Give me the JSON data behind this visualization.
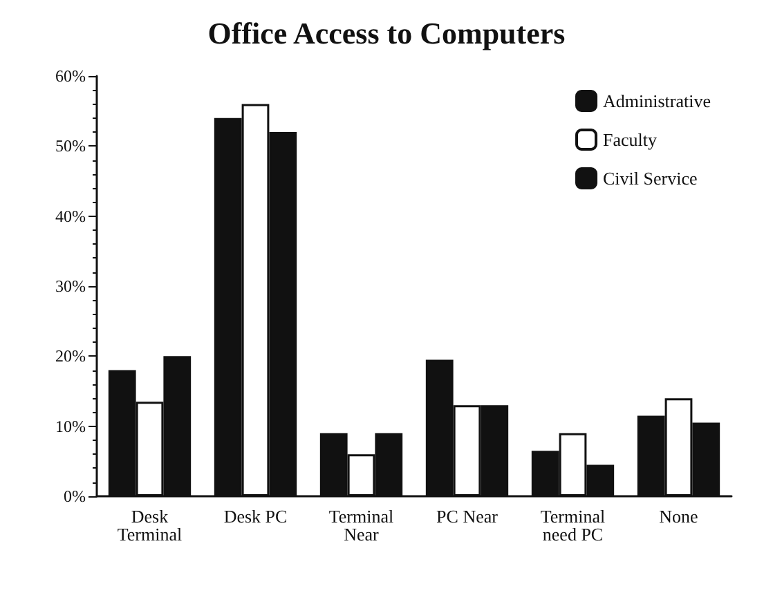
{
  "chart_data": {
    "type": "bar",
    "title": "Office Access to Computers",
    "categories": [
      "Desk\nTerminal",
      "Desk PC",
      "Terminal\nNear",
      "PC Near",
      "Terminal\nneed PC",
      "None"
    ],
    "series": [
      {
        "name": "Administrative",
        "color": "#111111",
        "values": [
          18,
          54,
          9,
          19.5,
          6.5,
          11.5
        ]
      },
      {
        "name": "Faculty",
        "color": "#ffffff",
        "values": [
          13.5,
          56,
          6,
          13,
          9,
          14
        ]
      },
      {
        "name": "Civil Service",
        "color": "#111111",
        "values": [
          20,
          52,
          9,
          13,
          4.5,
          10.5
        ]
      }
    ],
    "ylim": [
      0,
      60
    ],
    "yticks": [
      {
        "value": 0,
        "label": "0%"
      },
      {
        "value": 10,
        "label": "10%"
      },
      {
        "value": 20,
        "label": "20%"
      },
      {
        "value": 30,
        "label": "30%"
      },
      {
        "value": 40,
        "label": "40%"
      },
      {
        "value": 50,
        "label": "50%"
      },
      {
        "value": 60,
        "label": "60%"
      }
    ],
    "grid": false,
    "legend": "top right"
  }
}
